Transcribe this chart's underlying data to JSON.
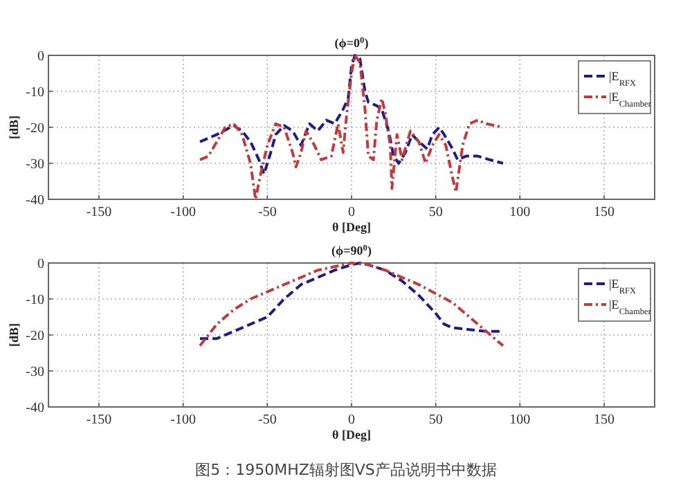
{
  "chart_data": [
    {
      "type": "line",
      "title": "(ϕ=0$^{0}$)",
      "xlabel": "θ [Deg]",
      "ylabel": "[dB]",
      "xlim": [
        -180,
        180
      ],
      "ylim": [
        -40,
        0
      ],
      "xticks": [
        -150,
        -100,
        -50,
        0,
        50,
        100,
        150
      ],
      "yticks": [
        -40,
        -30,
        -20,
        -10,
        0
      ],
      "grid": true,
      "legend": "top right",
      "marker": "none",
      "series": [
        {
          "name": "|E$_{RFX}$",
          "color": "#1c1c8c",
          "line_style": "dashed",
          "x": [
            -90,
            -80,
            -70,
            -65,
            -60,
            -55,
            -52,
            -48,
            -45,
            -40,
            -35,
            -30,
            -25,
            -20,
            -15,
            -10,
            -5,
            -2,
            0,
            2,
            5,
            8,
            10,
            15,
            18,
            22,
            25,
            28,
            32,
            36,
            40,
            45,
            48,
            52,
            55,
            60,
            63,
            68,
            75,
            82,
            90
          ],
          "values": [
            -24,
            -22,
            -19.5,
            -21,
            -24,
            -29,
            -33,
            -27,
            -22,
            -19.5,
            -21,
            -25,
            -19,
            -21,
            -18,
            -19,
            -15,
            -12,
            -3,
            0,
            -1,
            -10,
            -13,
            -14,
            -15,
            -21,
            -28,
            -30,
            -27,
            -22,
            -24,
            -26,
            -22,
            -20,
            -22,
            -26,
            -29,
            -28,
            -28,
            -29,
            -30
          ]
        },
        {
          "name": "|E$_{Chamber}$",
          "color": "#c23b3b",
          "line_style": "dashdot",
          "x": [
            -90,
            -85,
            -80,
            -75,
            -70,
            -65,
            -60,
            -57,
            -54,
            -50,
            -45,
            -40,
            -35,
            -33,
            -30,
            -27,
            -22,
            -18,
            -12,
            -8,
            -5,
            -3,
            0,
            2,
            5,
            8,
            10,
            13,
            15,
            18,
            20,
            23,
            24,
            27,
            30,
            35,
            40,
            44,
            48,
            52,
            56,
            60,
            62,
            66,
            70,
            75,
            80,
            90
          ],
          "values": [
            -29,
            -28,
            -24,
            -20,
            -19,
            -22,
            -30,
            -40,
            -33,
            -25,
            -19,
            -20,
            -27,
            -31,
            -27,
            -21,
            -25,
            -29,
            -28,
            -19,
            -27,
            -17,
            -5,
            0,
            -2,
            -15,
            -28,
            -29,
            -18,
            -12,
            -16,
            -25,
            -37,
            -22,
            -29,
            -21,
            -24,
            -30,
            -25,
            -22,
            -25,
            -34,
            -38,
            -25,
            -19,
            -18,
            -19,
            -20
          ]
        }
      ]
    },
    {
      "type": "line",
      "title": "(ϕ=90$^{0}$)",
      "xlabel": "θ [Deg]",
      "ylabel": "[dB]",
      "xlim": [
        -180,
        180
      ],
      "ylim": [
        -40,
        0
      ],
      "xticks": [
        -150,
        -100,
        -50,
        0,
        50,
        100,
        150
      ],
      "yticks": [
        -40,
        -30,
        -20,
        -10,
        0
      ],
      "grid": true,
      "legend": "top right",
      "marker": "none",
      "annotations": [
        "图5：1950MHZ辐射图VS产品说明书中数据"
      ],
      "series": [
        {
          "name": "|E$_{RFX}$",
          "color": "#1c1c8c",
          "line_style": "dashed",
          "x": [
            -90,
            -80,
            -70,
            -60,
            -50,
            -40,
            -30,
            -20,
            -10,
            0,
            5,
            10,
            20,
            30,
            40,
            50,
            55,
            60,
            70,
            80,
            90
          ],
          "values": [
            -21,
            -21,
            -19,
            -17,
            -15,
            -10,
            -6,
            -4,
            -2,
            -0.5,
            0,
            -0.5,
            -2,
            -5,
            -9,
            -14,
            -17,
            -18,
            -18.5,
            -19,
            -19
          ]
        },
        {
          "name": "|E$_{Chamber}$",
          "color": "#c23b3b",
          "line_style": "dashdot",
          "x": [
            -90,
            -85,
            -80,
            -70,
            -60,
            -50,
            -40,
            -30,
            -20,
            -10,
            0,
            10,
            20,
            30,
            40,
            50,
            60,
            70,
            80,
            90
          ],
          "values": [
            -23,
            -20,
            -17,
            -13,
            -10,
            -8,
            -6,
            -4,
            -2,
            -1,
            0,
            -0.5,
            -2,
            -4,
            -6,
            -8.5,
            -11,
            -15,
            -19,
            -23
          ]
        }
      ]
    }
  ]
}
